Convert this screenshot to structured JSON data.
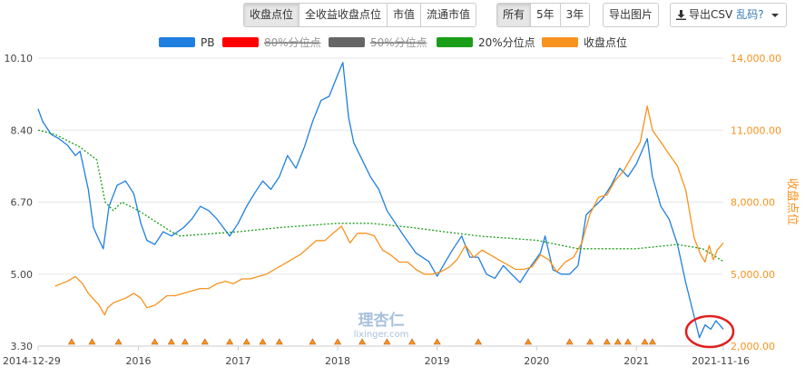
{
  "toolbar": {
    "metric_tabs": [
      {
        "label": "收盘点位",
        "active": true
      },
      {
        "label": "全收益收盘点位",
        "active": false
      },
      {
        "label": "市值",
        "active": false
      },
      {
        "label": "流通市值",
        "active": false
      }
    ],
    "range_tabs": [
      {
        "label": "所有",
        "active": true
      },
      {
        "label": "5年",
        "active": false
      },
      {
        "label": "3年",
        "active": false
      }
    ],
    "export_image": "导出图片",
    "export_csv": "导出CSV",
    "garbled": "乱码?"
  },
  "watermark": {
    "name": "理杏仁",
    "url": "lixinger.com"
  },
  "colors": {
    "pb": "#1f7fe0",
    "p80": "#ff0000",
    "p50": "#666666",
    "p20": "#1a9e1a",
    "close": "#f7931e",
    "grid": "#e6e6e6",
    "marker": "#f7931e",
    "circle": "#e02020"
  },
  "chart_data": {
    "type": "line",
    "xlabel": "",
    "x_ticks": [
      "2014-12-29",
      "2016",
      "2017",
      "2018",
      "2019",
      "2020",
      "2021",
      "2021-11-16"
    ],
    "x_range": [
      "2014-12-29",
      "2021-11-16"
    ],
    "y_left": {
      "label": "",
      "ylim": [
        3.3,
        10.1
      ],
      "ticks": [
        "3.30",
        "5.00",
        "6.70",
        "8.40",
        "10.10"
      ]
    },
    "y_right": {
      "label": "收盘点位",
      "ylim": [
        2000,
        14000
      ],
      "ticks": [
        "2,000.00",
        "5,000.00",
        "8,000.00",
        "11,000.00",
        "14,000.00"
      ]
    },
    "legend": [
      {
        "name": "PB",
        "visible": true
      },
      {
        "name": "80%分位点",
        "visible": false
      },
      {
        "name": "50%分位点",
        "visible": false
      },
      {
        "name": "20%分位点",
        "visible": true
      },
      {
        "name": "收盘点位",
        "visible": true
      }
    ],
    "series": [
      {
        "name": "PB",
        "axis": "left",
        "points": [
          [
            "2014-12-29",
            8.9
          ],
          [
            "2015-01-15",
            8.6
          ],
          [
            "2015-02-15",
            8.3
          ],
          [
            "2015-03-15",
            8.2
          ],
          [
            "2015-04-15",
            8.05
          ],
          [
            "2015-05-15",
            7.8
          ],
          [
            "2015-06-01",
            7.9
          ],
          [
            "2015-07-01",
            7.0
          ],
          [
            "2015-07-20",
            6.1
          ],
          [
            "2015-08-10",
            5.8
          ],
          [
            "2015-08-25",
            5.6
          ],
          [
            "2015-09-15",
            6.6
          ],
          [
            "2015-10-15",
            7.1
          ],
          [
            "2015-11-15",
            7.2
          ],
          [
            "2015-12-15",
            6.9
          ],
          [
            "2016-01-10",
            6.2
          ],
          [
            "2016-02-01",
            5.8
          ],
          [
            "2016-03-01",
            5.7
          ],
          [
            "2016-04-01",
            6.0
          ],
          [
            "2016-05-01",
            5.9
          ],
          [
            "2016-06-15",
            6.1
          ],
          [
            "2016-07-15",
            6.3
          ],
          [
            "2016-08-15",
            6.6
          ],
          [
            "2016-09-15",
            6.5
          ],
          [
            "2016-10-15",
            6.3
          ],
          [
            "2016-12-01",
            5.9
          ],
          [
            "2017-01-01",
            6.2
          ],
          [
            "2017-02-01",
            6.6
          ],
          [
            "2017-03-01",
            6.9
          ],
          [
            "2017-04-01",
            7.2
          ],
          [
            "2017-05-01",
            7.0
          ],
          [
            "2017-06-01",
            7.3
          ],
          [
            "2017-07-01",
            7.8
          ],
          [
            "2017-08-01",
            7.5
          ],
          [
            "2017-09-01",
            8.0
          ],
          [
            "2017-10-01",
            8.6
          ],
          [
            "2017-11-01",
            9.1
          ],
          [
            "2017-12-01",
            9.2
          ],
          [
            "2018-01-01",
            9.7
          ],
          [
            "2018-01-20",
            10.0
          ],
          [
            "2018-02-10",
            8.7
          ],
          [
            "2018-03-01",
            8.1
          ],
          [
            "2018-04-01",
            7.7
          ],
          [
            "2018-05-01",
            7.3
          ],
          [
            "2018-06-01",
            7.0
          ],
          [
            "2018-07-01",
            6.5
          ],
          [
            "2018-08-01",
            6.2
          ],
          [
            "2018-09-01",
            5.9
          ],
          [
            "2018-10-15",
            5.5
          ],
          [
            "2018-12-01",
            5.3
          ],
          [
            "2019-01-01",
            4.95
          ],
          [
            "2019-02-01",
            5.3
          ],
          [
            "2019-03-01",
            5.6
          ],
          [
            "2019-04-01",
            5.9
          ],
          [
            "2019-05-01",
            5.4
          ],
          [
            "2019-06-01",
            5.4
          ],
          [
            "2019-07-01",
            5.0
          ],
          [
            "2019-08-01",
            4.9
          ],
          [
            "2019-09-01",
            5.2
          ],
          [
            "2019-10-01",
            5.0
          ],
          [
            "2019-11-01",
            4.8
          ],
          [
            "2019-12-01",
            5.1
          ],
          [
            "2020-01-15",
            5.5
          ],
          [
            "2020-02-01",
            5.9
          ],
          [
            "2020-03-01",
            5.1
          ],
          [
            "2020-04-01",
            5.0
          ],
          [
            "2020-05-01",
            5.0
          ],
          [
            "2020-06-01",
            5.2
          ],
          [
            "2020-07-01",
            6.4
          ],
          [
            "2020-08-01",
            6.6
          ],
          [
            "2020-09-01",
            6.8
          ],
          [
            "2020-10-01",
            7.1
          ],
          [
            "2020-11-01",
            7.5
          ],
          [
            "2020-12-01",
            7.3
          ],
          [
            "2021-01-01",
            7.6
          ],
          [
            "2021-02-10",
            8.2
          ],
          [
            "2021-03-01",
            7.3
          ],
          [
            "2021-04-01",
            6.6
          ],
          [
            "2021-05-01",
            6.3
          ],
          [
            "2021-06-01",
            5.7
          ],
          [
            "2021-07-01",
            4.8
          ],
          [
            "2021-08-01",
            4.0
          ],
          [
            "2021-08-20",
            3.5
          ],
          [
            "2021-09-10",
            3.8
          ],
          [
            "2021-10-01",
            3.7
          ],
          [
            "2021-10-20",
            3.9
          ],
          [
            "2021-11-16",
            3.7
          ]
        ]
      },
      {
        "name": "20%分位点",
        "axis": "left",
        "points": [
          [
            "2014-12-29",
            8.4
          ],
          [
            "2015-03-01",
            8.3
          ],
          [
            "2015-06-01",
            8.0
          ],
          [
            "2015-08-01",
            7.7
          ],
          [
            "2015-09-01",
            6.7
          ],
          [
            "2015-10-01",
            6.5
          ],
          [
            "2015-11-01",
            6.7
          ],
          [
            "2016-01-01",
            6.5
          ],
          [
            "2016-05-01",
            6.0
          ],
          [
            "2016-06-01",
            5.9
          ],
          [
            "2017-01-01",
            6.0
          ],
          [
            "2017-06-01",
            6.1
          ],
          [
            "2018-01-01",
            6.2
          ],
          [
            "2018-05-01",
            6.2
          ],
          [
            "2018-10-01",
            6.1
          ],
          [
            "2019-06-01",
            5.9
          ],
          [
            "2020-01-01",
            5.8
          ],
          [
            "2020-06-01",
            5.6
          ],
          [
            "2021-01-01",
            5.6
          ],
          [
            "2021-06-01",
            5.7
          ],
          [
            "2021-09-01",
            5.6
          ],
          [
            "2021-11-16",
            5.3
          ]
        ]
      },
      {
        "name": "收盘点位",
        "axis": "right",
        "points": [
          [
            "2015-03-01",
            4500
          ],
          [
            "2015-04-15",
            4700
          ],
          [
            "2015-05-15",
            4900
          ],
          [
            "2015-06-10",
            4600
          ],
          [
            "2015-07-01",
            4200
          ],
          [
            "2015-08-10",
            3700
          ],
          [
            "2015-08-30",
            3300
          ],
          [
            "2015-09-10",
            3600
          ],
          [
            "2015-10-01",
            3800
          ],
          [
            "2015-11-15",
            4000
          ],
          [
            "2015-12-15",
            4200
          ],
          [
            "2016-01-10",
            4000
          ],
          [
            "2016-02-01",
            3600
          ],
          [
            "2016-03-01",
            3700
          ],
          [
            "2016-04-15",
            4100
          ],
          [
            "2016-05-15",
            4100
          ],
          [
            "2016-06-15",
            4200
          ],
          [
            "2016-07-15",
            4300
          ],
          [
            "2016-08-15",
            4400
          ],
          [
            "2016-09-15",
            4400
          ],
          [
            "2016-10-15",
            4600
          ],
          [
            "2016-11-15",
            4700
          ],
          [
            "2016-12-15",
            4600
          ],
          [
            "2017-01-15",
            4800
          ],
          [
            "2017-02-15",
            4800
          ],
          [
            "2017-03-15",
            4900
          ],
          [
            "2017-04-15",
            5000
          ],
          [
            "2017-05-15",
            5200
          ],
          [
            "2017-06-15",
            5400
          ],
          [
            "2017-07-15",
            5600
          ],
          [
            "2017-08-15",
            5800
          ],
          [
            "2017-09-15",
            6100
          ],
          [
            "2017-10-15",
            6400
          ],
          [
            "2017-11-15",
            6400
          ],
          [
            "2017-12-15",
            6700
          ],
          [
            "2018-01-15",
            7000
          ],
          [
            "2018-02-15",
            6300
          ],
          [
            "2018-03-15",
            6700
          ],
          [
            "2018-04-15",
            6700
          ],
          [
            "2018-05-15",
            6600
          ],
          [
            "2018-06-15",
            6000
          ],
          [
            "2018-07-15",
            5800
          ],
          [
            "2018-08-15",
            5500
          ],
          [
            "2018-09-15",
            5500
          ],
          [
            "2018-10-15",
            5200
          ],
          [
            "2018-11-15",
            5000
          ],
          [
            "2018-12-15",
            5000
          ],
          [
            "2019-01-15",
            5100
          ],
          [
            "2019-02-15",
            5300
          ],
          [
            "2019-03-15",
            5600
          ],
          [
            "2019-04-15",
            6200
          ],
          [
            "2019-05-15",
            5700
          ],
          [
            "2019-06-15",
            6000
          ],
          [
            "2019-07-15",
            5800
          ],
          [
            "2019-08-15",
            5600
          ],
          [
            "2019-09-15",
            5400
          ],
          [
            "2019-10-15",
            5200
          ],
          [
            "2019-11-15",
            5200
          ],
          [
            "2019-12-15",
            5300
          ],
          [
            "2020-01-15",
            5800
          ],
          [
            "2020-02-15",
            5600
          ],
          [
            "2020-03-15",
            5100
          ],
          [
            "2020-04-15",
            5500
          ],
          [
            "2020-05-15",
            5700
          ],
          [
            "2020-06-15",
            6300
          ],
          [
            "2020-07-15",
            7500
          ],
          [
            "2020-08-15",
            8200
          ],
          [
            "2020-09-15",
            8300
          ],
          [
            "2020-10-15",
            8900
          ],
          [
            "2020-11-15",
            9300
          ],
          [
            "2020-12-15",
            9900
          ],
          [
            "2021-01-15",
            10500
          ],
          [
            "2021-02-10",
            12000
          ],
          [
            "2021-03-01",
            11000
          ],
          [
            "2021-04-01",
            10500
          ],
          [
            "2021-05-01",
            10000
          ],
          [
            "2021-06-01",
            9500
          ],
          [
            "2021-07-01",
            8500
          ],
          [
            "2021-08-01",
            6500
          ],
          [
            "2021-08-25",
            5800
          ],
          [
            "2021-09-10",
            5500
          ],
          [
            "2021-09-25",
            6200
          ],
          [
            "2021-10-10",
            5600
          ],
          [
            "2021-10-25",
            6000
          ],
          [
            "2021-11-16",
            6300
          ]
        ]
      }
    ],
    "event_markers": [
      "2015-05-01",
      "2015-07-15",
      "2015-10-20",
      "2016-03-01",
      "2016-05-01",
      "2016-06-20",
      "2016-09-01",
      "2016-12-01",
      "2017-02-01",
      "2017-04-01",
      "2017-06-01",
      "2017-10-01",
      "2018-01-01",
      "2018-04-01",
      "2018-07-01",
      "2018-10-01",
      "2019-01-01",
      "2019-06-01",
      "2019-12-01",
      "2020-05-01",
      "2020-07-15",
      "2020-09-15",
      "2020-10-25",
      "2020-12-01",
      "2021-02-01",
      "2021-03-01"
    ]
  }
}
